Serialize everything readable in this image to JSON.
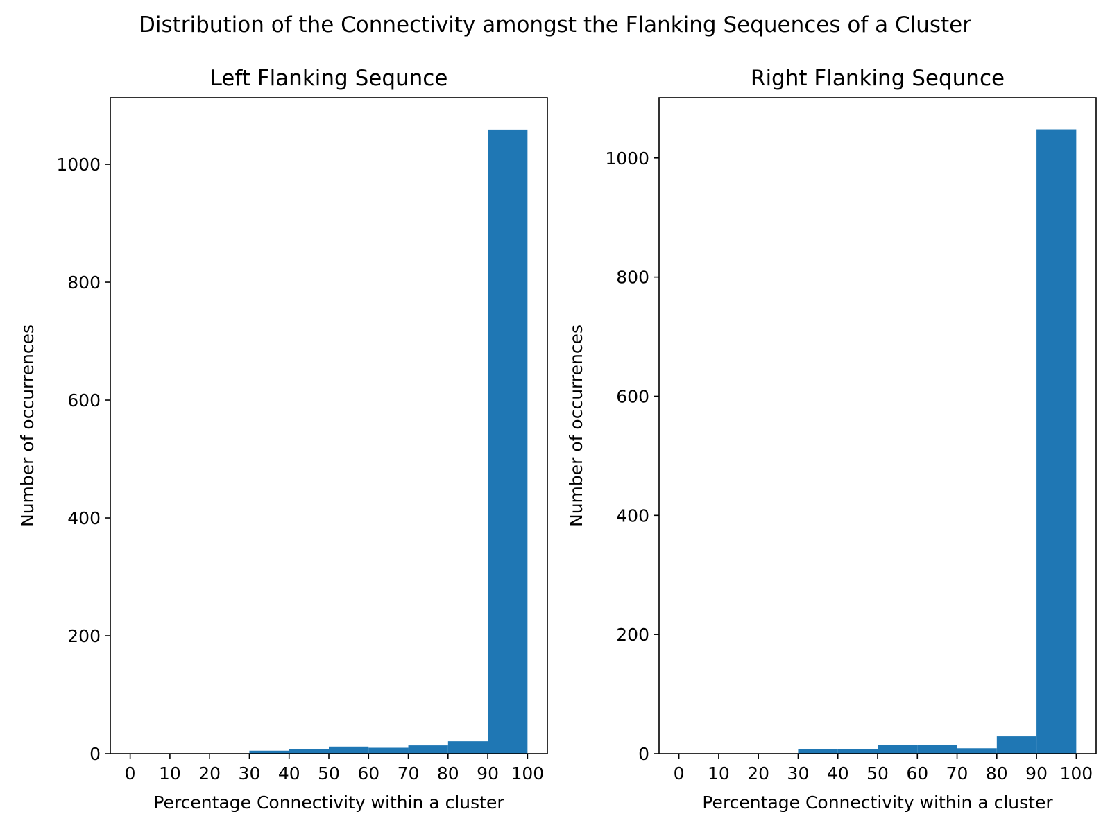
{
  "figure": {
    "title": "Distribution of the Connectivity amongst the Flanking Sequences of a Cluster"
  },
  "colors": {
    "bar": "#1f77b4",
    "axis": "#000000"
  },
  "chart_data": [
    {
      "type": "bar",
      "title": "Left Flanking Sequnce",
      "xlabel": "Percentage Connectivity within a cluster",
      "ylabel": "Number of occurrences",
      "xlim": [
        -5,
        105
      ],
      "ylim": [
        0,
        1113
      ],
      "xticks": [
        0,
        10,
        20,
        30,
        40,
        50,
        60,
        70,
        80,
        90,
        100
      ],
      "yticks": [
        0,
        200,
        400,
        600,
        800,
        1000
      ],
      "bin_edges": [
        0,
        10,
        20,
        30,
        40,
        50,
        60,
        70,
        80,
        90,
        100
      ],
      "values": [
        0,
        0,
        0,
        5,
        8,
        12,
        10,
        14,
        21,
        1059
      ],
      "grid": false
    },
    {
      "type": "bar",
      "title": "Right Flanking Sequnce",
      "xlabel": "Percentage Connectivity within a cluster",
      "ylabel": "Number of occurrences",
      "xlim": [
        -5,
        105
      ],
      "ylim": [
        0,
        1101
      ],
      "xticks": [
        0,
        10,
        20,
        30,
        40,
        50,
        60,
        70,
        80,
        90,
        100
      ],
      "yticks": [
        0,
        200,
        400,
        600,
        800,
        1000
      ],
      "bin_edges": [
        0,
        10,
        20,
        30,
        40,
        50,
        60,
        70,
        80,
        90,
        100
      ],
      "values": [
        0,
        0,
        0,
        7,
        7,
        15,
        14,
        9,
        29,
        1048
      ],
      "grid": false
    }
  ]
}
